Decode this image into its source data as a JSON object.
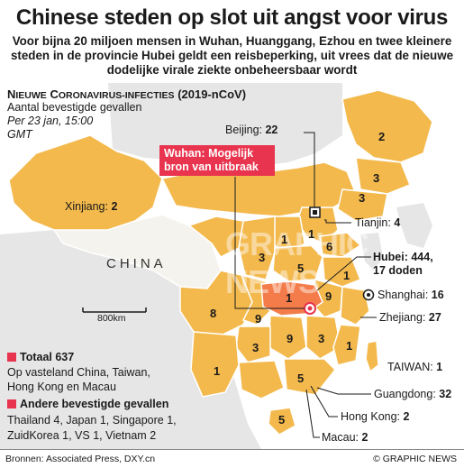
{
  "title": "Chinese steden op slot uit angst voor virus",
  "subtitle": "Voor bijna 20 miljoen mensen in Wuhan, Huanggang, Ezhou en twee kleinere steden in de provincie Hubei geldt een reisbeperking, uit vrees dat de nieuwe dodelijke virale ziekte onbeheersbaar wordt",
  "legend": {
    "heading_first": "N",
    "heading_sc": "IEUWE",
    "heading_c": "C",
    "heading_sc2": "ORONAVIRUS-INFECTIES",
    "heading_tail": "(2019-nCoV)",
    "sub": "Aantal bevestigde gevallen",
    "date": "Per 23 jan, 15:00 GMT"
  },
  "colors": {
    "province": "#f3b94d",
    "foreign_land": "#e6e6e6",
    "hubei": "#f47c4b",
    "accent": "#e8344e",
    "sea": "#ffffff"
  },
  "labels": {
    "beijing": "Beijing: ",
    "beijing_n": "22",
    "xinjiang": "Xinjiang: ",
    "xinjiang_n": "2",
    "tianjin": "Tianjin: ",
    "tianjin_n": "4",
    "hubei": "Hubei: 444,",
    "hubei_deaths": "17 doden",
    "shanghai": "Shanghai: ",
    "shanghai_n": "16",
    "zhejiang": "Zhejiang: ",
    "zhejiang_n": "27",
    "taiwan": "TAIWAN: ",
    "taiwan_n": "1",
    "guangdong": "Guangdong: ",
    "guangdong_n": "32",
    "hongkong": "Hong Kong: ",
    "hongkong_n": "2",
    "macau": "Macau: ",
    "macau_n": "2",
    "wuhan": "Wuhan: Mogelijk bron van uitbraak",
    "china": "CHINA",
    "scale": "800km"
  },
  "province_numbers": {
    "heilongjiang": "2",
    "jilin": "3",
    "liaoning": "3",
    "hebei": "1",
    "shandong": "6",
    "shanxi": "1",
    "henan": "5",
    "shaanxi": "3",
    "anhui": "9",
    "jiangsu": "1",
    "sichuan": "8",
    "chongqing": "9",
    "hunan": "9",
    "jiangxi": "3",
    "guizhou": "3",
    "fujian": "1",
    "yunnan": "1",
    "guangxi": "5",
    "hainan": "5",
    "hubei_center": "1"
  },
  "totals": {
    "title": "Totaal 637",
    "text": "Op vasteland China, Taiwan, Hong Kong en Macau",
    "other_title": "Andere bevestigde gevallen",
    "other_line1": "Thailand 4, Japan 1, Singapore 1,",
    "other_line2": "ZuidKorea 1, VS 1, Vietnam 2"
  },
  "footer": {
    "source": "Bronnen: Associated Press, DXY.cn",
    "credit": "© GRAPHIC NEWS"
  },
  "watermark": "GRAPHIC NEWS"
}
